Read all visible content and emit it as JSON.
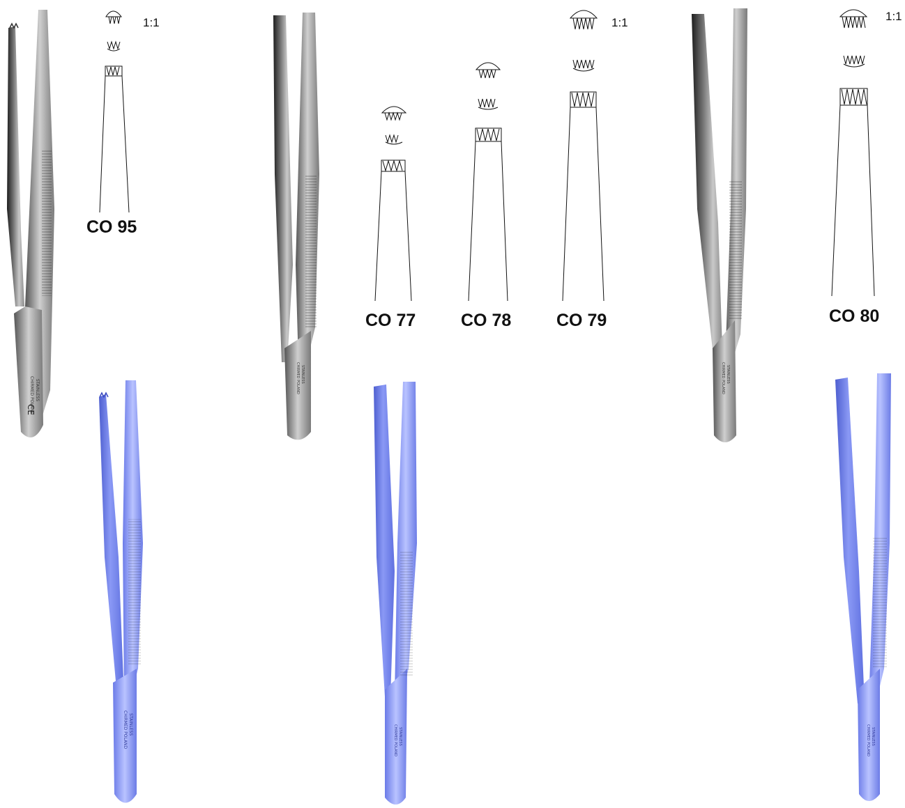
{
  "scale_marks": {
    "left": "1:1",
    "middle": "1:1",
    "right": "1:1"
  },
  "models": [
    {
      "code": "CO 95"
    },
    {
      "code": "CO 77"
    },
    {
      "code": "CO 78"
    },
    {
      "code": "CO 79"
    },
    {
      "code": "CO 80"
    }
  ],
  "colors": {
    "steel_dark": "#2b2b2b",
    "steel_mid": "#8a8a8a",
    "steel_light": "#d8d8d8",
    "blue_dark": "#4e5fd0",
    "blue_mid": "#7d8df0",
    "blue_light": "#b9c3ff",
    "line": "#111111"
  },
  "handle_engraving": {
    "line1": "CHIRMED POLAND",
    "line2": "STAINLESS",
    "mark": "CE"
  }
}
